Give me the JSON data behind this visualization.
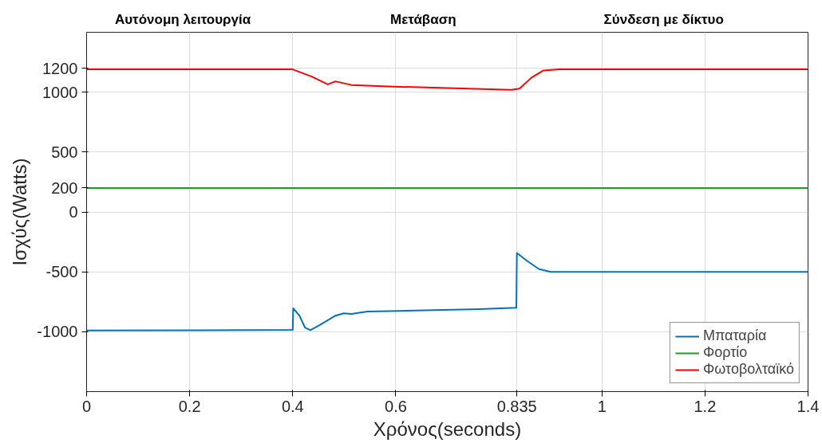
{
  "chart_data": {
    "type": "line",
    "xlabel": "Χρόνος(seconds)",
    "ylabel": "Ισχύς(Watts)",
    "annotations": [
      "Αυτόνομη λειτουργία",
      "Μετάβαση",
      "Σύνδεση με δίκτυο"
    ],
    "xlim": [
      0,
      1.4
    ],
    "ylim": [
      -1500,
      1500
    ],
    "xticks": [
      0,
      0.2,
      0.4,
      0.6,
      0.835,
      1,
      1.2,
      1.4
    ],
    "yticks": [
      -1000,
      -500,
      0,
      200,
      500,
      1000,
      1200
    ],
    "grid": true,
    "legend": "bottom right",
    "line_style": "solid",
    "marker": "none",
    "series": [
      {
        "name": "Μπαταρία",
        "color": "#0072bd",
        "x": [
          0,
          0.4,
          0.401,
          0.413,
          0.424,
          0.434,
          0.452,
          0.483,
          0.499,
          0.514,
          0.545,
          0.607,
          0.762,
          0.834,
          0.835,
          0.855,
          0.878,
          0.901,
          1.4
        ],
        "values": [
          -990,
          -985,
          -805,
          -866,
          -966,
          -987,
          -946,
          -866,
          -846,
          -852,
          -832,
          -826,
          -812,
          -800,
          -342,
          -409,
          -477,
          -500,
          -500
        ]
      },
      {
        "name": "Φορτίο",
        "color": "#1aa01a",
        "x": [
          0,
          1.4
        ],
        "values": [
          200,
          200
        ]
      },
      {
        "name": "Φωτοβολταϊκό",
        "color": "#ff0000",
        "x": [
          0,
          0.4,
          0.437,
          0.468,
          0.483,
          0.514,
          0.607,
          0.824,
          0.84,
          0.863,
          0.886,
          0.917,
          1.4
        ],
        "values": [
          1190,
          1190,
          1130,
          1065,
          1090,
          1060,
          1045,
          1020,
          1030,
          1120,
          1180,
          1190,
          1190
        ]
      }
    ]
  }
}
